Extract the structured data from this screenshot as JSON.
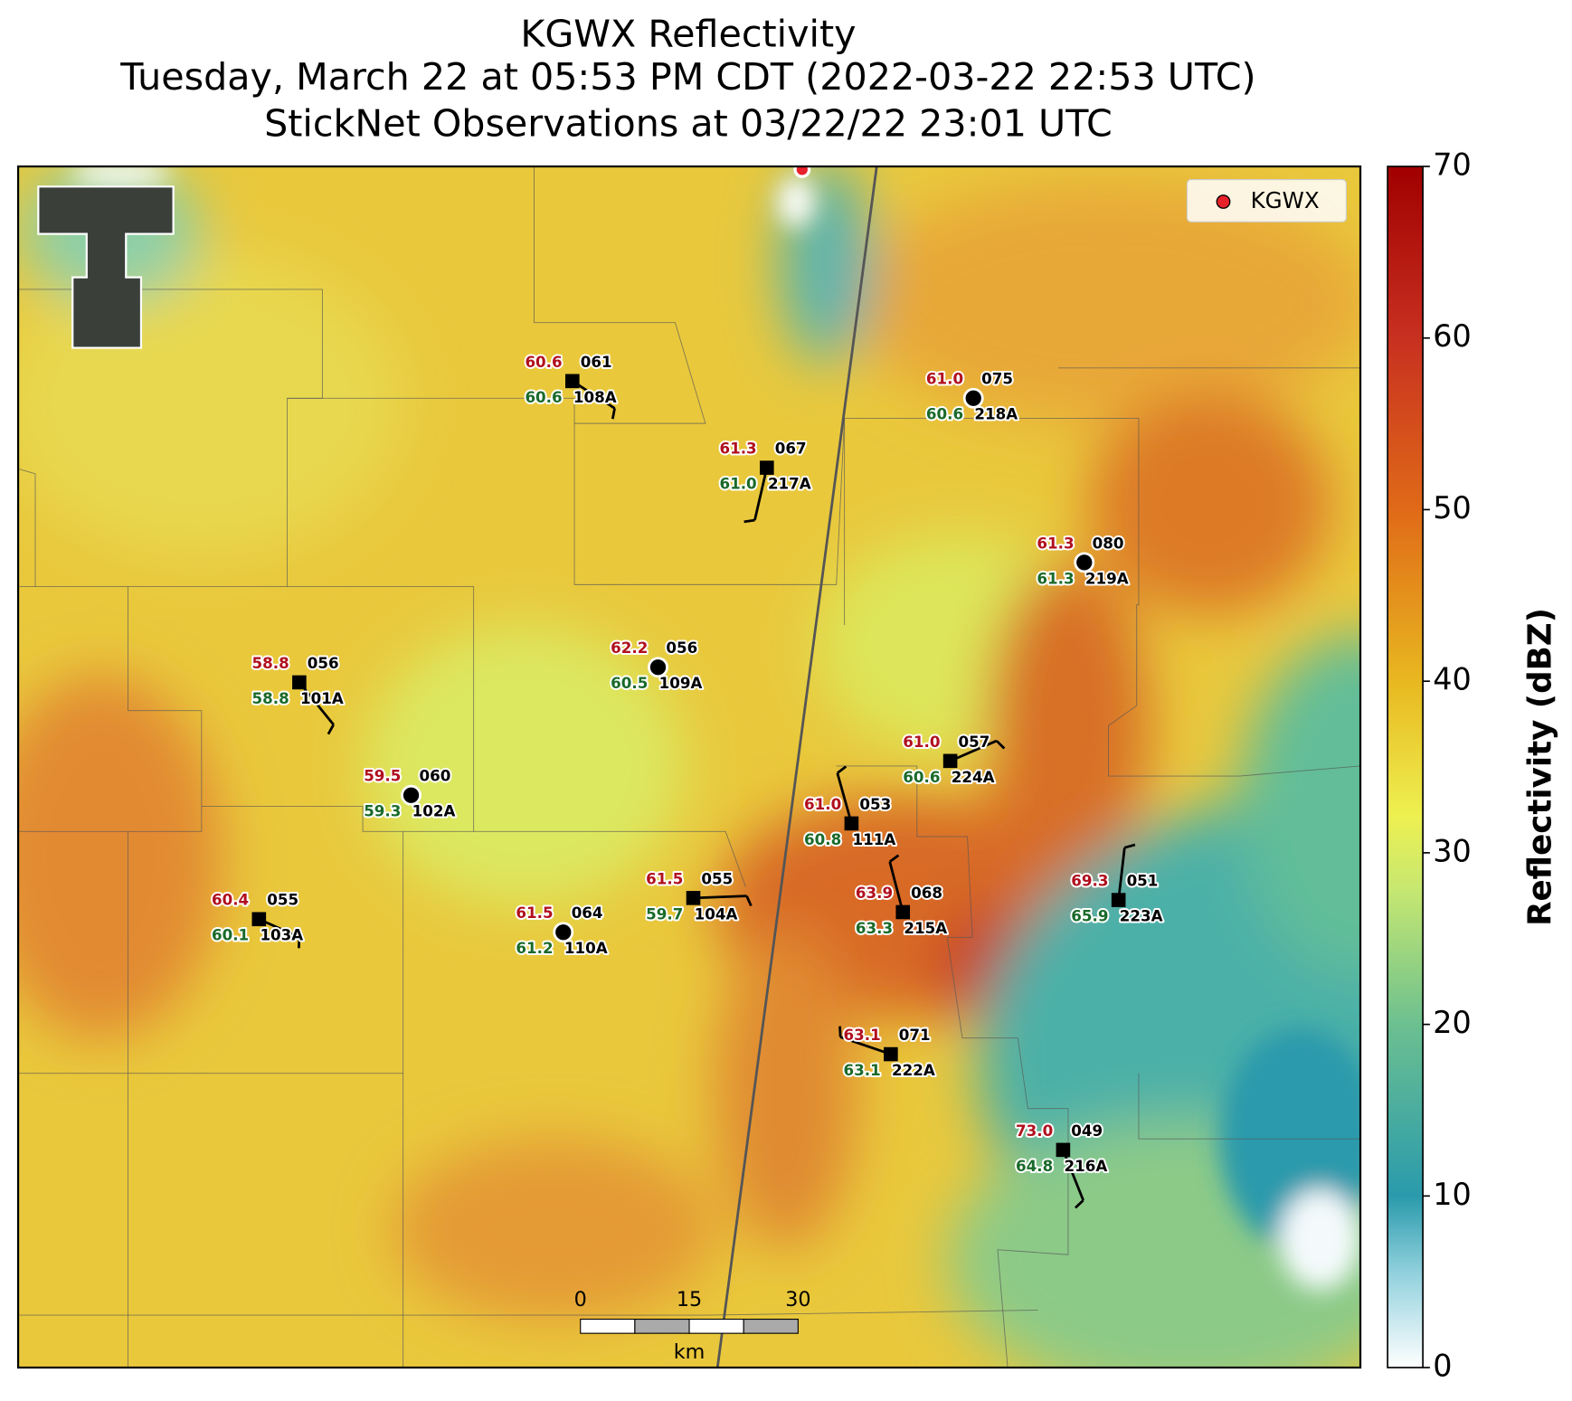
{
  "title": [
    "KGWX Reflectivity",
    "Tuesday, March 22 at 05:53 PM CDT (2022-03-22 22:53 UTC)",
    "StickNet Observations at 03/22/22 23:01 UTC"
  ],
  "legend": {
    "label": "KGWX"
  },
  "colorbar": {
    "label": "Reflectivity (dBZ)",
    "lim": [
      0,
      70
    ],
    "ticks": [
      0,
      10,
      20,
      30,
      40,
      50,
      60,
      70
    ]
  },
  "scale_bar": {
    "ticks": [
      0,
      15,
      30
    ],
    "unit": "km"
  },
  "stations": [
    {
      "id": "108A",
      "temp": "60.6",
      "pressure": "061",
      "dewpoint": "60.6"
    },
    {
      "id": "218A",
      "temp": "61.0",
      "pressure": "075",
      "dewpoint": "60.6"
    },
    {
      "id": "217A",
      "temp": "61.3",
      "pressure": "067",
      "dewpoint": "61.0"
    },
    {
      "id": "219A",
      "temp": "61.3",
      "pressure": "080",
      "dewpoint": "61.3"
    },
    {
      "id": "109A",
      "temp": "62.2",
      "pressure": "056",
      "dewpoint": "60.5"
    },
    {
      "id": "101A",
      "temp": "58.8",
      "pressure": "056",
      "dewpoint": "58.8"
    },
    {
      "id": "224A",
      "temp": "61.0",
      "pressure": "057",
      "dewpoint": "60.6"
    },
    {
      "id": "102A",
      "temp": "59.5",
      "pressure": "060",
      "dewpoint": "59.3"
    },
    {
      "id": "111A",
      "temp": "61.0",
      "pressure": "053",
      "dewpoint": "60.8"
    },
    {
      "id": "104A",
      "temp": "61.5",
      "pressure": "055",
      "dewpoint": "59.7"
    },
    {
      "id": "215A",
      "temp": "63.9",
      "pressure": "068",
      "dewpoint": "63.3"
    },
    {
      "id": "223A",
      "temp": "69.3",
      "pressure": "051",
      "dewpoint": "65.9"
    },
    {
      "id": "103A",
      "temp": "60.4",
      "pressure": "055",
      "dewpoint": "60.1"
    },
    {
      "id": "110A",
      "temp": "61.5",
      "pressure": "064",
      "dewpoint": "61.2"
    },
    {
      "id": "222A",
      "temp": "63.1",
      "pressure": "071",
      "dewpoint": "63.1"
    },
    {
      "id": "216A",
      "temp": "73.0",
      "pressure": "049",
      "dewpoint": "64.8"
    }
  ]
}
